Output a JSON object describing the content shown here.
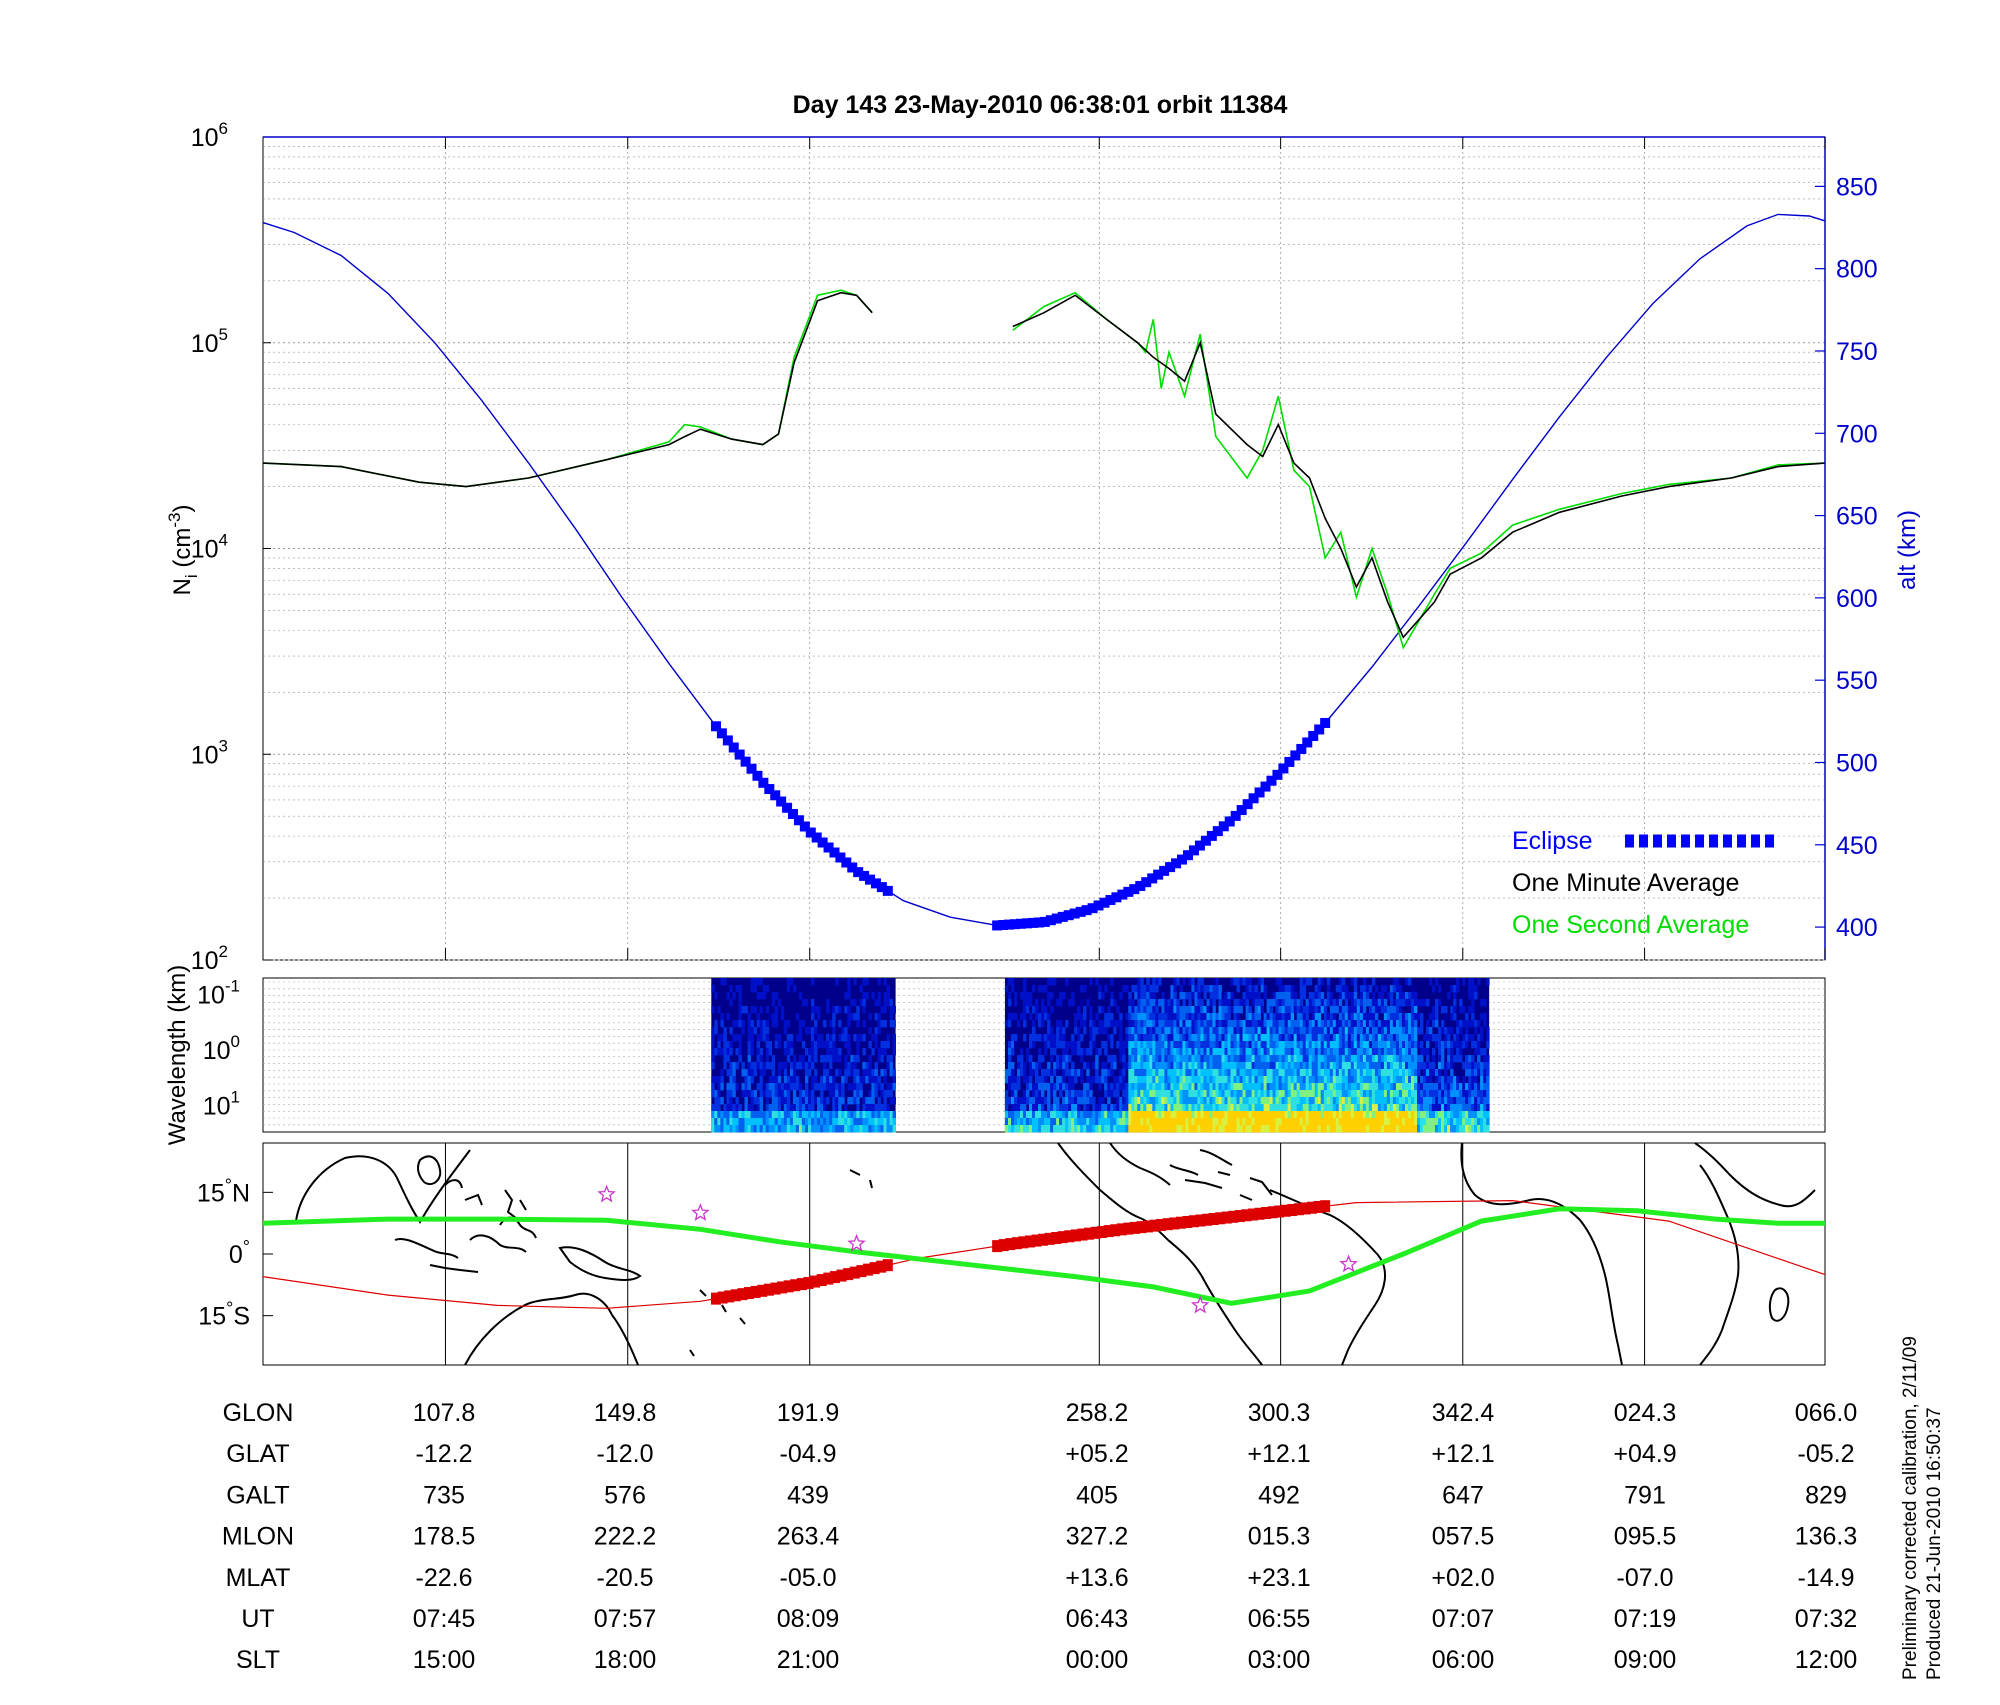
{
  "title": "Day 143  23-May-2010 06:38:01    orbit 11384",
  "colors": {
    "altitude": "#0000cc",
    "one_minute": "#000000",
    "one_second": "#00dd00",
    "eclipse": "#0000ff",
    "track_red": "#dd0000",
    "track_green": "#22ee22",
    "stars": "#cc33cc",
    "map_line": "#000000"
  },
  "chart_data": [
    {
      "type": "line",
      "ylabel": "N_i (cm^-3)",
      "ylabel_left_base": "N",
      "ylabel_left_sub": "i",
      "ylabel_left_rest": "(cm",
      "ylabel_left_sup": "-3",
      "ylabel_left_end": ")",
      "yscale": "log",
      "ylim": [
        100,
        1000000
      ],
      "yticks": [
        {
          "base": "10",
          "exp": "2"
        },
        {
          "base": "10",
          "exp": "3"
        },
        {
          "base": "10",
          "exp": "4"
        },
        {
          "base": "10",
          "exp": "5"
        },
        {
          "base": "10",
          "exp": "6"
        }
      ],
      "ylabel_right": "alt (km)",
      "y2lim": [
        380,
        880
      ],
      "y2ticks": [
        "400",
        "450",
        "500",
        "550",
        "600",
        "650",
        "700",
        "750",
        "800",
        "850"
      ],
      "xlim": [
        0,
        1
      ],
      "legend_position": "bottom-right",
      "legend": [
        "Eclipse",
        "One Minute Average",
        "One Second Average"
      ],
      "series": [
        {
          "name": "One Minute Average",
          "x": [
            0,
            0.05,
            0.1,
            0.13,
            0.17,
            0.22,
            0.26,
            0.27,
            0.28,
            0.3,
            0.32,
            0.33,
            0.34,
            0.355,
            0.37,
            0.38,
            0.39,
            0.395,
            0.405,
            0.42,
            0.46,
            0.48,
            0.5,
            0.52,
            0.54,
            0.56,
            0.57,
            0.58,
            0.59,
            0.6,
            0.61,
            0.63,
            0.64,
            0.65,
            0.66,
            0.67,
            0.68,
            0.69,
            0.7,
            0.71,
            0.72,
            0.73,
            0.75,
            0.76,
            0.78,
            0.8,
            0.83,
            0.87,
            0.9,
            0.94,
            0.97,
            1.0
          ],
          "y": [
            26000,
            25000,
            21000,
            20000,
            22000,
            27000,
            32000,
            35000,
            38000,
            34000,
            32000,
            36000,
            80000,
            160000,
            175000,
            170000,
            140000,
            null,
            null,
            null,
            null,
            120000,
            140000,
            170000,
            130000,
            100000,
            85000,
            75000,
            65000,
            100000,
            45000,
            32000,
            28000,
            40000,
            26000,
            22000,
            14000,
            10000,
            6500,
            9000,
            5500,
            3700,
            5500,
            7500,
            9000,
            12000,
            15000,
            18000,
            20000,
            22000,
            25000,
            26000
          ]
        },
        {
          "name": "One Second Average",
          "x": [
            0,
            0.05,
            0.1,
            0.13,
            0.17,
            0.22,
            0.26,
            0.27,
            0.28,
            0.3,
            0.32,
            0.33,
            0.34,
            0.355,
            0.37,
            0.38,
            0.39,
            0.395,
            0.405,
            0.42,
            0.46,
            0.48,
            0.5,
            0.52,
            0.54,
            0.56,
            0.565,
            0.57,
            0.575,
            0.58,
            0.59,
            0.6,
            0.61,
            0.63,
            0.64,
            0.65,
            0.66,
            0.67,
            0.68,
            0.69,
            0.7,
            0.71,
            0.72,
            0.73,
            0.75,
            0.76,
            0.78,
            0.8,
            0.83,
            0.87,
            0.9,
            0.94,
            0.97,
            1.0
          ],
          "y": [
            26000,
            25000,
            21000,
            20000,
            22000,
            27000,
            33000,
            40000,
            39000,
            34000,
            32000,
            36000,
            85000,
            170000,
            180000,
            170000,
            140000,
            null,
            null,
            null,
            null,
            115000,
            150000,
            175000,
            130000,
            100000,
            90000,
            130000,
            60000,
            90000,
            55000,
            110000,
            35000,
            22000,
            30000,
            55000,
            24000,
            20000,
            9000,
            12000,
            5800,
            10000,
            6000,
            3300,
            6000,
            8000,
            9500,
            13000,
            15500,
            18500,
            20500,
            22000,
            25500,
            26000
          ]
        },
        {
          "name": "alt",
          "axis": "right",
          "x": [
            0,
            0.02,
            0.05,
            0.08,
            0.11,
            0.14,
            0.17,
            0.2,
            0.23,
            0.26,
            0.29,
            0.32,
            0.35,
            0.38,
            0.41,
            0.44,
            0.47,
            0.5,
            0.53,
            0.56,
            0.59,
            0.62,
            0.65,
            0.68,
            0.71,
            0.74,
            0.77,
            0.8,
            0.83,
            0.86,
            0.89,
            0.92,
            0.95,
            0.97,
            0.99,
            1.0
          ],
          "y": [
            828,
            822,
            808,
            785,
            755,
            720,
            682,
            642,
            600,
            560,
            522,
            488,
            458,
            434,
            416,
            406,
            401,
            403,
            411,
            424,
            442,
            465,
            493,
            524,
            558,
            595,
            633,
            672,
            710,
            746,
            779,
            806,
            826,
            833,
            832,
            829
          ]
        }
      ],
      "eclipse_segments": [
        {
          "x": [
            0.29,
            0.4
          ]
        },
        {
          "x": [
            0.47,
            0.68
          ]
        }
      ]
    },
    {
      "type": "heatmap",
      "ylabel": "Wavelength (km)",
      "yscale": "log",
      "ylim": [
        0.05,
        30
      ],
      "yticks": [
        {
          "base": "10",
          "exp": "-1"
        },
        {
          "base": "10",
          "exp": "0"
        },
        {
          "base": "10",
          "exp": "1"
        }
      ],
      "data_segments": [
        {
          "x": [
            0.287,
            0.405
          ],
          "activity": "low"
        },
        {
          "x": [
            0.475,
            0.785
          ],
          "activity": "high"
        }
      ]
    },
    {
      "type": "line",
      "subtype": "map",
      "ylim": [
        -27,
        27
      ],
      "yticks": [
        "15°S",
        "0°",
        "15°N"
      ],
      "ytick_values": [
        -15,
        0,
        15
      ],
      "series": [
        {
          "name": "geographic-track",
          "x": [
            0,
            0.08,
            0.15,
            0.22,
            0.28,
            0.35,
            0.42,
            0.48,
            0.55,
            0.62,
            0.7,
            0.8,
            0.9,
            1.0
          ],
          "y": [
            -5.5,
            -10,
            -12.5,
            -13.2,
            -11.5,
            -7,
            -1,
            2.5,
            6,
            9,
            12.5,
            13,
            8,
            -5
          ]
        },
        {
          "name": "magnetic-track",
          "x": [
            0,
            0.08,
            0.15,
            0.22,
            0.28,
            0.33,
            0.38,
            0.45,
            0.52,
            0.57,
            0.62,
            0.67,
            0.73,
            0.78,
            0.83,
            0.88,
            0.93,
            0.97,
            1.0
          ],
          "y": [
            7.5,
            8.5,
            8.5,
            8.2,
            6,
            3,
            0.5,
            -2.5,
            -5.5,
            -8,
            -12,
            -9,
            0,
            8,
            11,
            10.5,
            8.5,
            7.5,
            7.5
          ]
        }
      ],
      "eclipse_segments": [
        {
          "x": [
            0.29,
            0.4
          ]
        },
        {
          "x": [
            0.47,
            0.68
          ]
        }
      ],
      "stars": [
        {
          "x": 0.22,
          "y": 14.5
        },
        {
          "x": 0.28,
          "y": 10
        },
        {
          "x": 0.38,
          "y": 2.5
        },
        {
          "x": 0.6,
          "y": -12.5
        },
        {
          "x": 0.695,
          "y": -2.5
        }
      ]
    }
  ],
  "table": {
    "rows": [
      {
        "label": "GLON",
        "values": [
          "107.8",
          "149.8",
          "191.9",
          "258.2",
          "300.3",
          "342.4",
          "024.3",
          "066.0"
        ]
      },
      {
        "label": "GLAT",
        "values": [
          "-12.2",
          "-12.0",
          "-04.9",
          "+05.2",
          "+12.1",
          "+12.1",
          "+04.9",
          "-05.2"
        ]
      },
      {
        "label": "GALT",
        "values": [
          "735",
          "576",
          "439",
          "405",
          "492",
          "647",
          "791",
          "829"
        ]
      },
      {
        "label": "MLON",
        "values": [
          "178.5",
          "222.2",
          "263.4",
          "327.2",
          "015.3",
          "057.5",
          "095.5",
          "136.3"
        ]
      },
      {
        "label": "MLAT",
        "values": [
          "-22.6",
          "-20.5",
          "-05.0",
          "+13.6",
          "+23.1",
          "+02.0",
          "-07.0",
          "-14.9"
        ]
      },
      {
        "label": "UT",
        "values": [
          "07:45",
          "07:57",
          "08:09",
          "06:43",
          "06:55",
          "07:07",
          "07:19",
          "07:32"
        ]
      },
      {
        "label": "SLT",
        "values": [
          "15:00",
          "18:00",
          "21:00",
          "00:00",
          "03:00",
          "06:00",
          "09:00",
          "12:00"
        ]
      }
    ]
  },
  "footnote": {
    "line1": "Preliminary corrected calibration, 2/11/09",
    "line2": "Produced 21-Jun-2010 16:50:37"
  }
}
